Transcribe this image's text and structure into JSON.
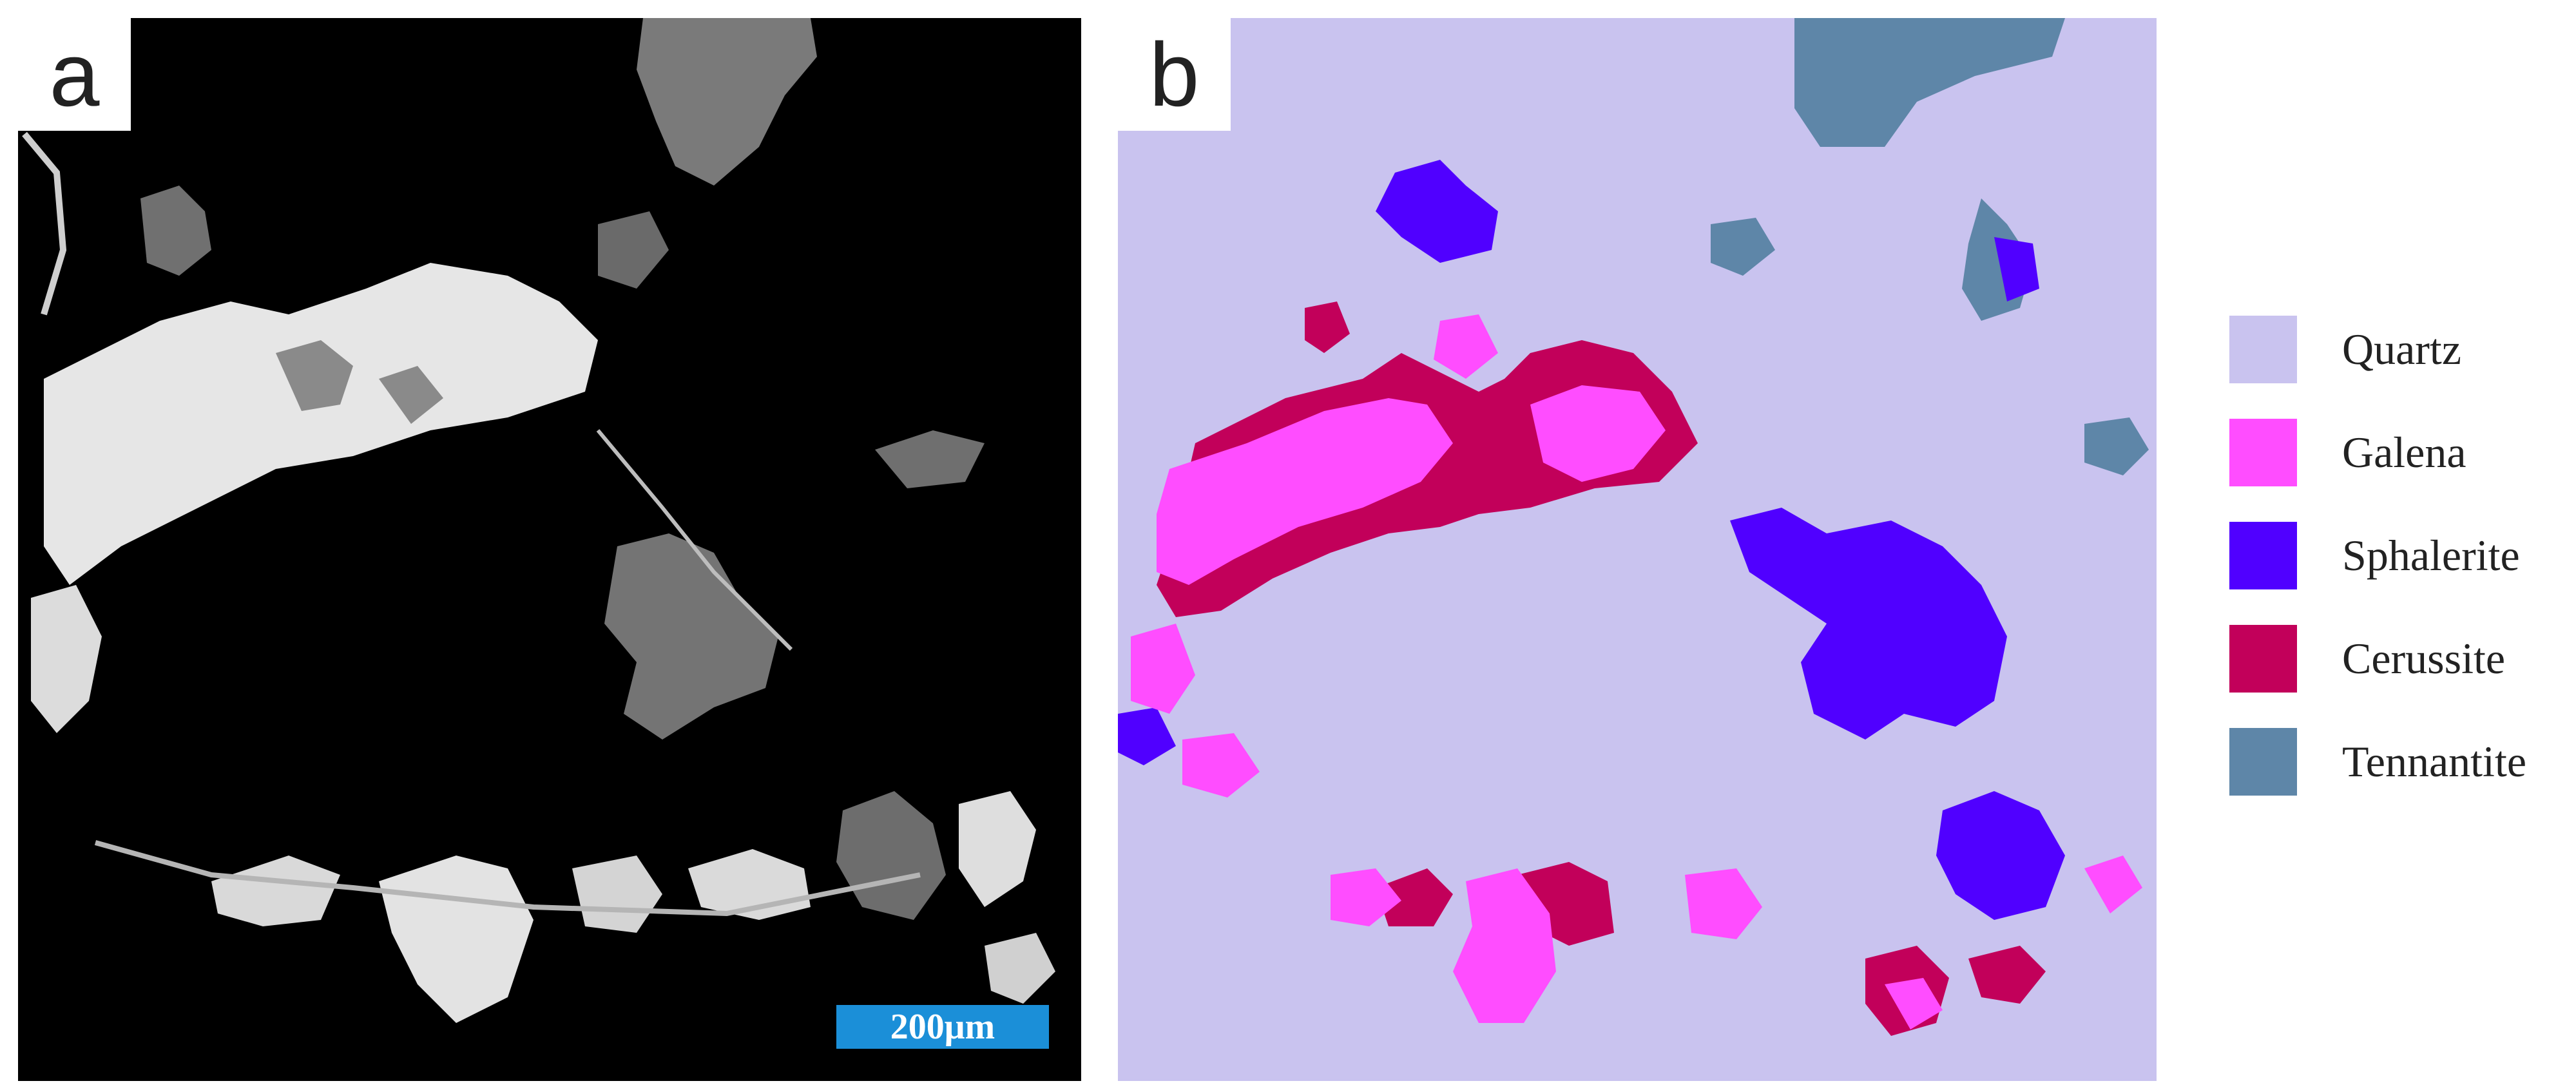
{
  "panel_a": {
    "label": "a",
    "scale_bar": "200μm"
  },
  "panel_b": {
    "label": "b"
  },
  "legend": {
    "items": [
      {
        "label": "Quartz",
        "color": "#c9c3ef"
      },
      {
        "label": "Galena",
        "color": "#ff4dff"
      },
      {
        "label": "Sphalerite",
        "color": "#5000ff"
      },
      {
        "label": "Cerussite",
        "color": "#c2005a"
      },
      {
        "label": "Tennantite",
        "color": "#5e86a8"
      }
    ]
  }
}
